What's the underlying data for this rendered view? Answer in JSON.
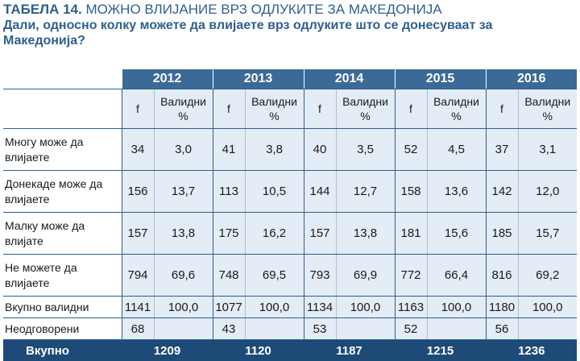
{
  "title": {
    "label": "ТАБЕЛА 14.",
    "text": "МОЖНО ВЛИЈАНИЕ ВРЗ ОДЛУКИТЕ ЗА МАКЕДОНИЈА"
  },
  "question": "Дали, односно колку можете да влијаете врз одлуките што се донесуваат за Македонија?",
  "years": [
    "2012",
    "2013",
    "2014",
    "2015",
    "2016"
  ],
  "col_f": "f",
  "col_valid": "Валидни %",
  "rows": [
    {
      "label": "Многу може да влијаете",
      "cells": [
        [
          "34",
          "3,0"
        ],
        [
          "41",
          "3,8"
        ],
        [
          "40",
          "3,5"
        ],
        [
          "52",
          "4,5"
        ],
        [
          "37",
          "3,1"
        ]
      ]
    },
    {
      "label": "Донекаде може да влијаете",
      "cells": [
        [
          "156",
          "13,7"
        ],
        [
          "113",
          "10,5"
        ],
        [
          "144",
          "12,7"
        ],
        [
          "158",
          "13,6"
        ],
        [
          "142",
          "12,0"
        ]
      ]
    },
    {
      "label": "Малку може да влијате",
      "cells": [
        [
          "157",
          "13,8"
        ],
        [
          "175",
          "16,2"
        ],
        [
          "157",
          "13,8"
        ],
        [
          "181",
          "15,6"
        ],
        [
          "185",
          "15,7"
        ]
      ]
    },
    {
      "label": "Не можете да влијаете",
      "cells": [
        [
          "794",
          "69,6"
        ],
        [
          "748",
          "69,5"
        ],
        [
          "793",
          "69,9"
        ],
        [
          "772",
          "66,4"
        ],
        [
          "816",
          "69,2"
        ]
      ]
    },
    {
      "label": "Вкупно валидни",
      "cells": [
        [
          "1141",
          "100,0"
        ],
        [
          "1077",
          "100,0"
        ],
        [
          "1134",
          "100,0"
        ],
        [
          "1163",
          "100,0"
        ],
        [
          "1180",
          "100,0"
        ]
      ]
    },
    {
      "label": "Неодговорени",
      "cells": [
        [
          "68",
          ""
        ],
        [
          "43",
          ""
        ],
        [
          "53",
          ""
        ],
        [
          "52",
          ""
        ],
        [
          "56",
          ""
        ]
      ]
    }
  ],
  "total": {
    "label": "Вкупно",
    "values": [
      "1209",
      "1120",
      "1187",
      "1215",
      "1236"
    ]
  }
}
